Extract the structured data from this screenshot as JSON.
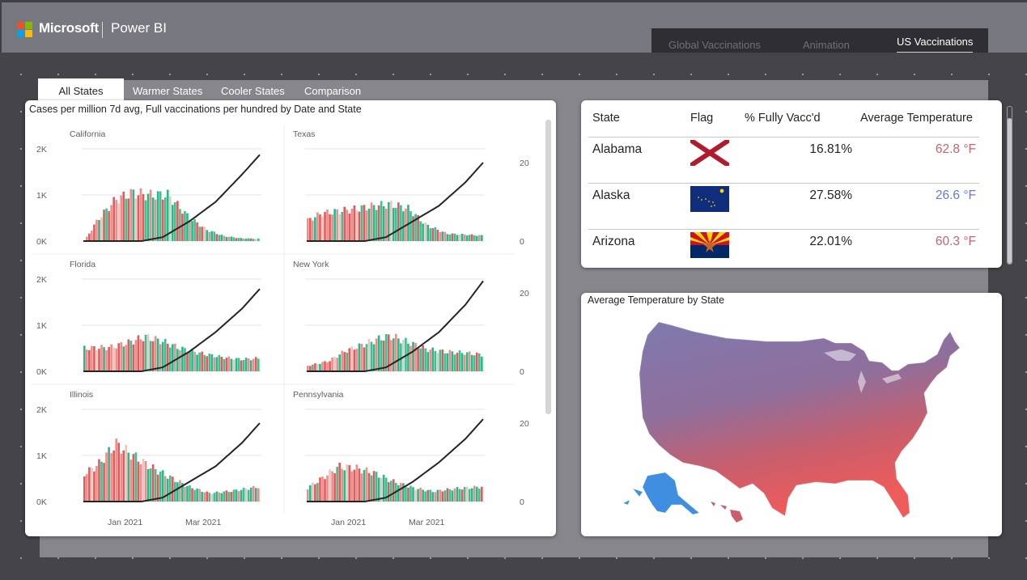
{
  "app": {
    "brand": "Microsoft",
    "product": "Power BI"
  },
  "page_tabs": [
    {
      "label": "Global Vaccinations",
      "active": false
    },
    {
      "label": "Animation",
      "active": false
    },
    {
      "label": "US Vaccinations",
      "active": true
    }
  ],
  "report_tabs": [
    {
      "label": "All States",
      "active": true
    },
    {
      "label": "Warmer States",
      "active": false
    },
    {
      "label": "Cooler States",
      "active": false
    },
    {
      "label": "Comparison",
      "active": false
    }
  ],
  "small_multiples": {
    "title": "Cases per million 7d avg, Full vaccinations per hundred by Date and State",
    "y_ticks_left": [
      "2K",
      "1K",
      "0K"
    ],
    "y_ticks_right": [
      "20",
      "0"
    ],
    "x_ticks": [
      "Jan 2021",
      "Mar 2021"
    ]
  },
  "chart_data": [
    {
      "type": "bar",
      "state": "California",
      "x_start": "2020-10-01",
      "x_end": "2021-04-15",
      "y_left_range": [
        0,
        2000
      ],
      "y_right_range": [
        0,
        25
      ],
      "series": [
        {
          "name": "Cases per million 7d avg",
          "keypoints": [
            [
              0,
              0
            ],
            [
              0.08,
              480
            ],
            [
              0.18,
              900
            ],
            [
              0.28,
              1050
            ],
            [
              0.36,
              1000
            ],
            [
              0.48,
              1000
            ],
            [
              0.6,
              520
            ],
            [
              0.7,
              250
            ],
            [
              0.8,
              110
            ],
            [
              0.9,
              60
            ],
            [
              1,
              50
            ]
          ]
        },
        {
          "name": "Full vaccinations per hundred",
          "keypoints": [
            [
              0,
              0
            ],
            [
              0.33,
              0
            ],
            [
              0.45,
              1
            ],
            [
              0.6,
              5
            ],
            [
              0.75,
              10
            ],
            [
              0.9,
              17
            ],
            [
              1,
              22
            ]
          ]
        }
      ]
    },
    {
      "type": "bar",
      "state": "Texas",
      "x_start": "2020-10-01",
      "x_end": "2021-04-15",
      "y_left_range": [
        0,
        2000
      ],
      "y_right_range": [
        0,
        25
      ],
      "series": [
        {
          "name": "Cases per million 7d avg",
          "keypoints": [
            [
              0,
              450
            ],
            [
              0.08,
              600
            ],
            [
              0.18,
              650
            ],
            [
              0.28,
              700
            ],
            [
              0.38,
              760
            ],
            [
              0.48,
              800
            ],
            [
              0.58,
              700
            ],
            [
              0.68,
              350
            ],
            [
              0.8,
              160
            ],
            [
              0.9,
              140
            ],
            [
              1,
              120
            ]
          ]
        },
        {
          "name": "Full vaccinations per hundred",
          "keypoints": [
            [
              0,
              0
            ],
            [
              0.33,
              0
            ],
            [
              0.45,
              1
            ],
            [
              0.6,
              5
            ],
            [
              0.75,
              9
            ],
            [
              0.9,
              15
            ],
            [
              1,
              20
            ]
          ]
        }
      ]
    },
    {
      "type": "bar",
      "state": "Florida",
      "x_start": "2020-10-01",
      "x_end": "2021-04-15",
      "y_left_range": [
        0,
        2000
      ],
      "y_right_range": [
        0,
        25
      ],
      "series": [
        {
          "name": "Cases per million 7d avg",
          "keypoints": [
            [
              0,
              500
            ],
            [
              0.15,
              520
            ],
            [
              0.25,
              620
            ],
            [
              0.35,
              750
            ],
            [
              0.45,
              650
            ],
            [
              0.55,
              500
            ],
            [
              0.68,
              380
            ],
            [
              0.8,
              300
            ],
            [
              0.9,
              260
            ],
            [
              1,
              280
            ]
          ]
        },
        {
          "name": "Full vaccinations per hundred",
          "keypoints": [
            [
              0,
              0
            ],
            [
              0.33,
              0
            ],
            [
              0.45,
              1
            ],
            [
              0.6,
              5
            ],
            [
              0.75,
              10
            ],
            [
              0.9,
              16
            ],
            [
              1,
              21
            ]
          ]
        }
      ]
    },
    {
      "type": "bar",
      "state": "New York",
      "x_start": "2020-10-01",
      "x_end": "2021-04-15",
      "y_left_range": [
        0,
        2000
      ],
      "y_right_range": [
        0,
        25
      ],
      "series": [
        {
          "name": "Cases per million 7d avg",
          "keypoints": [
            [
              0,
              120
            ],
            [
              0.12,
              220
            ],
            [
              0.22,
              450
            ],
            [
              0.32,
              580
            ],
            [
              0.42,
              720
            ],
            [
              0.48,
              760
            ],
            [
              0.58,
              630
            ],
            [
              0.68,
              480
            ],
            [
              0.8,
              420
            ],
            [
              0.9,
              400
            ],
            [
              1,
              360
            ]
          ]
        },
        {
          "name": "Full vaccinations per hundred",
          "keypoints": [
            [
              0,
              0
            ],
            [
              0.33,
              0
            ],
            [
              0.45,
              1
            ],
            [
              0.6,
              5
            ],
            [
              0.75,
              10
            ],
            [
              0.9,
              17
            ],
            [
              1,
              23
            ]
          ]
        }
      ]
    },
    {
      "type": "bar",
      "state": "Illinois",
      "x_start": "2020-10-01",
      "x_end": "2021-04-15",
      "y_left_range": [
        0,
        2000
      ],
      "y_right_range": [
        0,
        25
      ],
      "series": [
        {
          "name": "Cases per million 7d avg",
          "keypoints": [
            [
              0,
              600
            ],
            [
              0.08,
              800
            ],
            [
              0.18,
              1250
            ],
            [
              0.28,
              1000
            ],
            [
              0.38,
              750
            ],
            [
              0.48,
              550
            ],
            [
              0.6,
              320
            ],
            [
              0.72,
              180
            ],
            [
              0.85,
              230
            ],
            [
              1,
              320
            ]
          ]
        },
        {
          "name": "Full vaccinations per hundred",
          "keypoints": [
            [
              0,
              0
            ],
            [
              0.33,
              0
            ],
            [
              0.45,
              1
            ],
            [
              0.6,
              5
            ],
            [
              0.75,
              9
            ],
            [
              0.9,
              15
            ],
            [
              1,
              20
            ]
          ]
        }
      ]
    },
    {
      "type": "bar",
      "state": "Pennsylvania",
      "x_start": "2020-10-01",
      "x_end": "2021-04-15",
      "y_left_range": [
        0,
        2000
      ],
      "y_right_range": [
        0,
        25
      ],
      "series": [
        {
          "name": "Cases per million 7d avg",
          "keypoints": [
            [
              0,
              300
            ],
            [
              0.08,
              500
            ],
            [
              0.18,
              760
            ],
            [
              0.28,
              720
            ],
            [
              0.38,
              620
            ],
            [
              0.48,
              450
            ],
            [
              0.6,
              300
            ],
            [
              0.72,
              220
            ],
            [
              0.85,
              280
            ],
            [
              1,
              320
            ]
          ]
        },
        {
          "name": "Full vaccinations per hundred",
          "keypoints": [
            [
              0,
              0
            ],
            [
              0.33,
              0
            ],
            [
              0.45,
              1
            ],
            [
              0.6,
              5
            ],
            [
              0.75,
              10
            ],
            [
              0.9,
              16
            ],
            [
              1,
              21
            ]
          ]
        }
      ]
    }
  ],
  "state_table": {
    "headers": {
      "state": "State",
      "flag": "Flag",
      "pct": "% Fully Vacc'd",
      "temp": "Average Temperature"
    },
    "rows": [
      {
        "state": "Alabama",
        "pct": "16.81%",
        "temp": "62.8 °F",
        "temp_color": "#c8626e"
      },
      {
        "state": "Alaska",
        "pct": "27.58%",
        "temp": "26.6 °F",
        "temp_color": "#6a7ac6"
      },
      {
        "state": "Arizona",
        "pct": "22.01%",
        "temp": "60.3 °F",
        "temp_color": "#c0627a"
      }
    ]
  },
  "map": {
    "title": "Average Temperature  by State",
    "colors": {
      "cold": "#3f8ee0",
      "cool": "#7f7aae",
      "mild": "#8f6f9c",
      "warm": "#c95e6c",
      "hot": "#ed5b5b"
    }
  }
}
